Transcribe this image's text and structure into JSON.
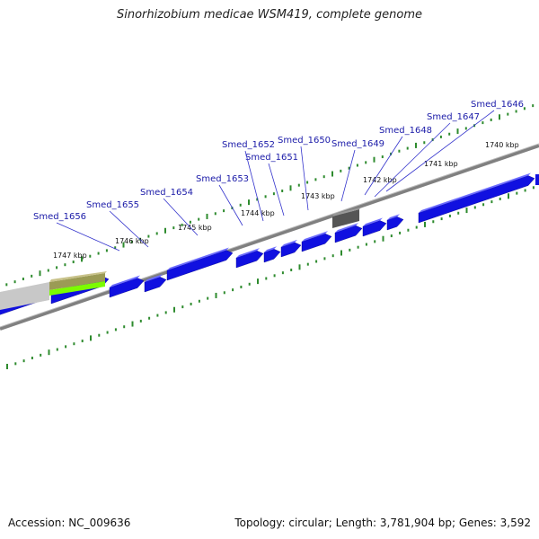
{
  "title": "Sinorhizobium medicae WSM419, complete genome",
  "footer": {
    "accession": "Accession: NC_009636",
    "topology": "Topology: circular; Length: 3,781,904 bp; Genes: 3,592"
  },
  "colors": {
    "gene_forward": "#1010e0",
    "gene_dark": "#555555",
    "gene_green": "#7cfc00",
    "gene_olive": "#9b9b55",
    "backbone": "#808080",
    "tick": "#2e8b2e",
    "label": "#1a1aa8"
  },
  "kbp_labels": [
    "1740 kbp",
    "1741 kbp",
    "1742 kbp",
    "1743 kbp",
    "1744 kbp",
    "1745 kbp",
    "1746 kbp",
    "1747 kbp"
  ],
  "gene_labels": [
    "Smed_1646",
    "Smed_1647",
    "Smed_1648",
    "Smed_1649",
    "Smed_1650",
    "Smed_1651",
    "Smed_1652",
    "Smed_1653",
    "Smed_1654",
    "Smed_1655",
    "Smed_1656"
  ]
}
